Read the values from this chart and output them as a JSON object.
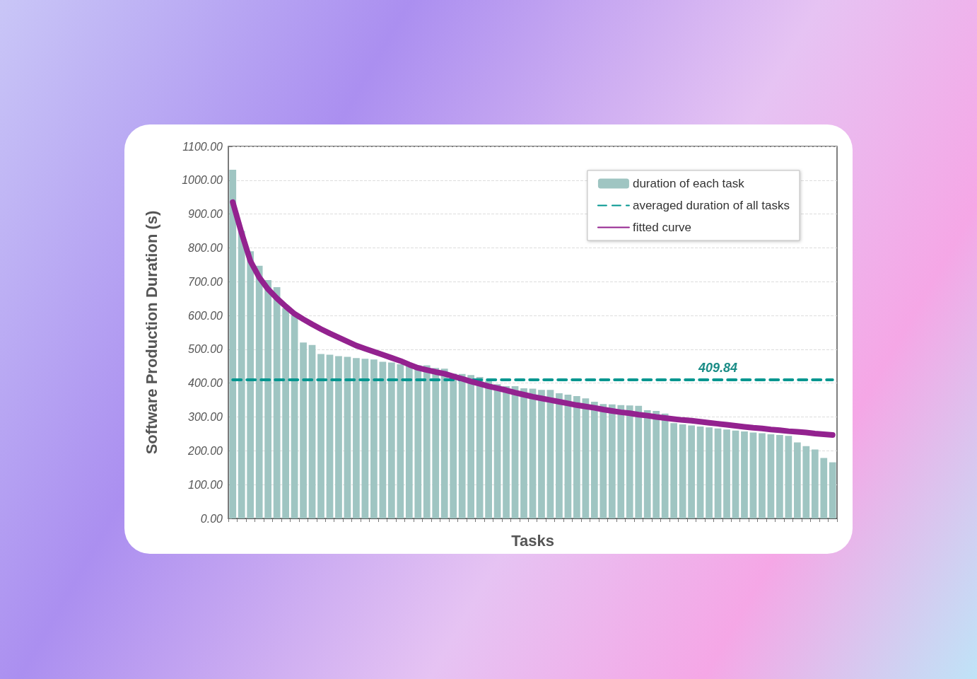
{
  "chart_data": {
    "type": "bar",
    "xlabel": "Tasks",
    "ylabel": "Software Production Duration (s)",
    "categories": [
      null,
      null,
      null,
      null,
      null,
      null,
      null,
      null,
      null,
      null,
      null,
      null,
      null,
      null,
      null,
      null,
      null,
      null,
      null,
      null,
      null,
      null,
      null,
      null,
      null,
      null,
      null,
      null,
      null,
      null,
      null,
      null,
      null,
      null,
      null,
      null,
      null,
      null,
      null,
      null,
      null,
      null,
      null,
      null,
      null,
      null,
      null,
      null,
      null,
      null,
      null,
      null,
      null,
      null,
      null,
      null,
      null,
      null,
      null,
      null,
      null,
      null,
      null,
      null,
      null,
      null,
      null,
      null,
      null
    ],
    "series": [
      {
        "name": "duration of each task",
        "color": "#9fc5c2",
        "values": [
          1031,
          850,
          790,
          747,
          705,
          684,
          622,
          601,
          520,
          513,
          486,
          484,
          480,
          478,
          474,
          472,
          470,
          463,
          461,
          456,
          453,
          453,
          453,
          445,
          443,
          428,
          427,
          424,
          418,
          407,
          397,
          391,
          391,
          385,
          384,
          380,
          380,
          370,
          366,
          362,
          355,
          345,
          338,
          337,
          335,
          334,
          333,
          320,
          318,
          310,
          282,
          278,
          275,
          272,
          269,
          266,
          263,
          260,
          257,
          254,
          252,
          249,
          247,
          244,
          225,
          214,
          204,
          179,
          166
        ]
      },
      {
        "name": "averaged duration of all tasks",
        "type": "line",
        "color": "#00968f",
        "line_style": "dashed",
        "values": [
          409.84,
          409.84,
          409.84,
          409.84,
          409.84,
          409.84,
          409.84,
          409.84,
          409.84,
          409.84,
          409.84,
          409.84,
          409.84,
          409.84,
          409.84,
          409.84,
          409.84,
          409.84,
          409.84,
          409.84,
          409.84,
          409.84,
          409.84,
          409.84,
          409.84,
          409.84,
          409.84,
          409.84,
          409.84,
          409.84,
          409.84,
          409.84,
          409.84,
          409.84,
          409.84,
          409.84,
          409.84,
          409.84,
          409.84,
          409.84,
          409.84,
          409.84,
          409.84,
          409.84,
          409.84,
          409.84,
          409.84,
          409.84,
          409.84,
          409.84,
          409.84,
          409.84,
          409.84,
          409.84,
          409.84,
          409.84,
          409.84,
          409.84,
          409.84,
          409.84,
          409.84,
          409.84,
          409.84,
          409.84,
          409.84,
          409.84,
          409.84,
          409.84,
          409.84
        ]
      },
      {
        "name": "fitted curve",
        "type": "line",
        "color": "#93228f",
        "line_style": "solid",
        "values": [
          935,
          844,
          761,
          713,
          678,
          651,
          627,
          605,
          589,
          574,
          560,
          547,
          535,
          523,
          511,
          502,
          493,
          484,
          475,
          466,
          455,
          445,
          439,
          433,
          428,
          420,
          413,
          405,
          398,
          391,
          385,
          379,
          372,
          366,
          360,
          355,
          350,
          345,
          340,
          335,
          331,
          327,
          322,
          318,
          314,
          311,
          307,
          304,
          300,
          297,
          294,
          291,
          289,
          286,
          283,
          280,
          277,
          274,
          271,
          268,
          266,
          263,
          261,
          258,
          256,
          254,
          251,
          249,
          247
        ]
      }
    ],
    "annotations": [
      {
        "text": "409.84",
        "y": 409.84
      }
    ],
    "ylim": [
      0,
      1100
    ],
    "yticks": [
      {
        "value": 0,
        "label": "0.00"
      },
      {
        "value": 100,
        "label": "100.00"
      },
      {
        "value": 200,
        "label": "200.00"
      },
      {
        "value": 300,
        "label": "300.00"
      },
      {
        "value": 400,
        "label": "400.00"
      },
      {
        "value": 500,
        "label": "500.00"
      },
      {
        "value": 600,
        "label": "600.00"
      },
      {
        "value": 700,
        "label": "700.00"
      },
      {
        "value": 800,
        "label": "800.00"
      },
      {
        "value": 900,
        "label": "900.00"
      },
      {
        "value": 1000,
        "label": "1000.00"
      },
      {
        "value": 1100,
        "label": "1100.00"
      }
    ],
    "grid": "y",
    "legend": "top right",
    "marker": "none"
  }
}
